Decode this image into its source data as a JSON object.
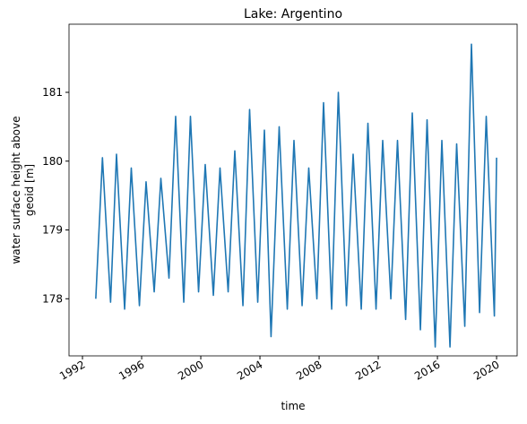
{
  "chart_data": {
    "type": "line",
    "title": "Lake: Argentino",
    "xlabel": "time",
    "ylabel": [
      "water surface height above",
      "geoid [m]"
    ],
    "series": [
      {
        "name": "water surface height above geoid",
        "color": "#1f77b4",
        "x": [
          1992.9,
          1993.35,
          1993.9,
          1994.3,
          1994.85,
          1995.3,
          1995.85,
          1996.3,
          1996.85,
          1997.3,
          1997.85,
          1998.3,
          1998.85,
          1999.3,
          1999.85,
          2000.3,
          2000.85,
          2001.3,
          2001.85,
          2002.3,
          2002.85,
          2003.3,
          2003.85,
          2004.3,
          2004.75,
          2005.3,
          2005.85,
          2006.3,
          2006.85,
          2007.3,
          2007.85,
          2008.3,
          2008.85,
          2009.3,
          2009.85,
          2010.3,
          2010.85,
          2011.3,
          2011.85,
          2012.3,
          2012.85,
          2013.3,
          2013.85,
          2014.3,
          2014.85,
          2015.3,
          2015.85,
          2016.3,
          2016.85,
          2017.3,
          2017.85,
          2018.3,
          2018.85,
          2019.3,
          2019.85,
          2020.0
        ],
        "values": [
          178.0,
          180.05,
          177.95,
          180.1,
          177.85,
          179.9,
          177.9,
          179.7,
          178.1,
          179.75,
          178.3,
          180.65,
          177.95,
          180.65,
          178.1,
          179.95,
          178.05,
          179.9,
          178.1,
          180.15,
          177.9,
          180.75,
          177.95,
          180.45,
          177.45,
          180.5,
          177.85,
          180.3,
          177.9,
          179.9,
          178.0,
          180.85,
          177.85,
          181.0,
          177.9,
          180.1,
          177.85,
          180.55,
          177.85,
          180.3,
          178.0,
          180.3,
          177.7,
          180.7,
          177.55,
          180.6,
          177.3,
          180.3,
          177.3,
          180.25,
          177.6,
          181.7,
          177.8,
          180.65,
          177.75,
          180.05
        ]
      }
    ],
    "xlim": [
      1991.09,
      2021.39
    ],
    "xticks": [
      1992,
      1996,
      2000,
      2004,
      2008,
      2012,
      2016,
      2020
    ],
    "ylim": [
      177.17,
      181.99
    ],
    "yticks": [
      178,
      179,
      180,
      181
    ],
    "grid": false
  }
}
